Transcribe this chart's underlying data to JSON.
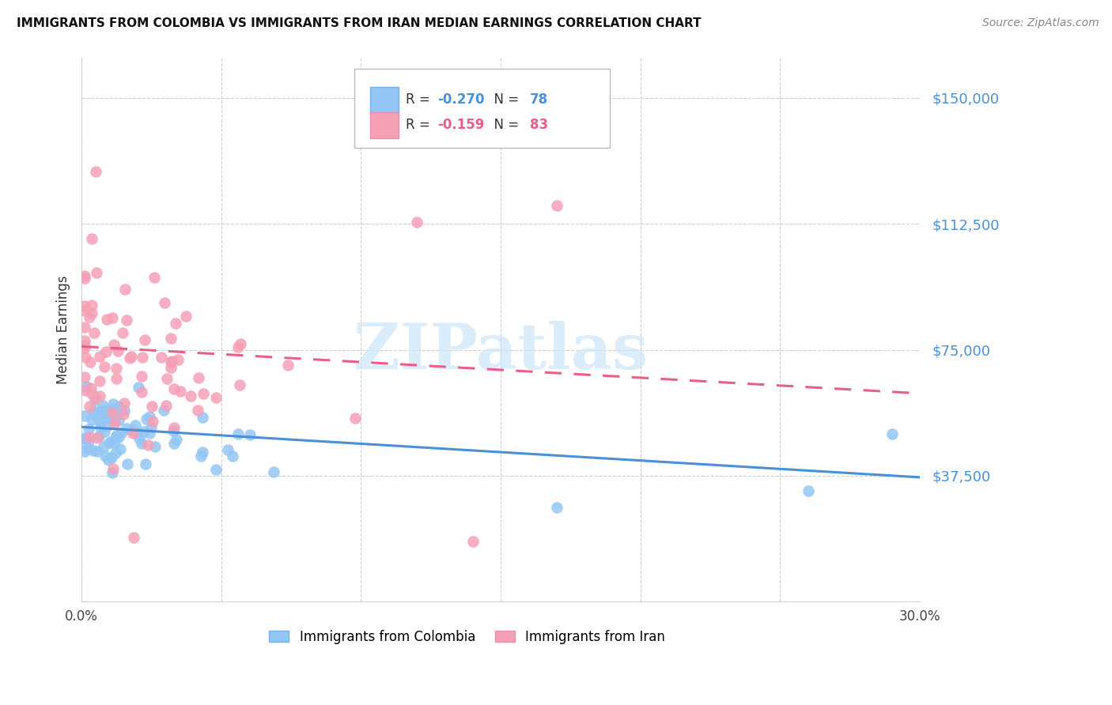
{
  "title": "IMMIGRANTS FROM COLOMBIA VS IMMIGRANTS FROM IRAN MEDIAN EARNINGS CORRELATION CHART",
  "source": "Source: ZipAtlas.com",
  "ylabel": "Median Earnings",
  "ylim": [
    0,
    162000
  ],
  "xlim": [
    0.0,
    0.3
  ],
  "colombia_color": "#93c6f4",
  "iran_color": "#f5a0b5",
  "colombia_line_color": "#4a90d9",
  "iran_line_color": "#e8608a",
  "colombia_R": -0.27,
  "colombia_N": 78,
  "iran_R": -0.159,
  "iran_N": 83,
  "colombia_intercept": 51000,
  "iran_intercept": 74000,
  "legend_label_colombia": "Immigrants from Colombia",
  "legend_label_iran": "Immigrants from Iran",
  "ytick_vals": [
    37500,
    75000,
    112500,
    150000
  ],
  "ytick_labels": [
    "$37,500",
    "$75,000",
    "$112,500",
    "$150,000"
  ],
  "watermark_color": "#cce4f8",
  "grid_color": "#d0d0d0",
  "title_fontsize": 11,
  "source_fontsize": 10,
  "ytick_fontsize": 13,
  "xtick_fontsize": 12
}
